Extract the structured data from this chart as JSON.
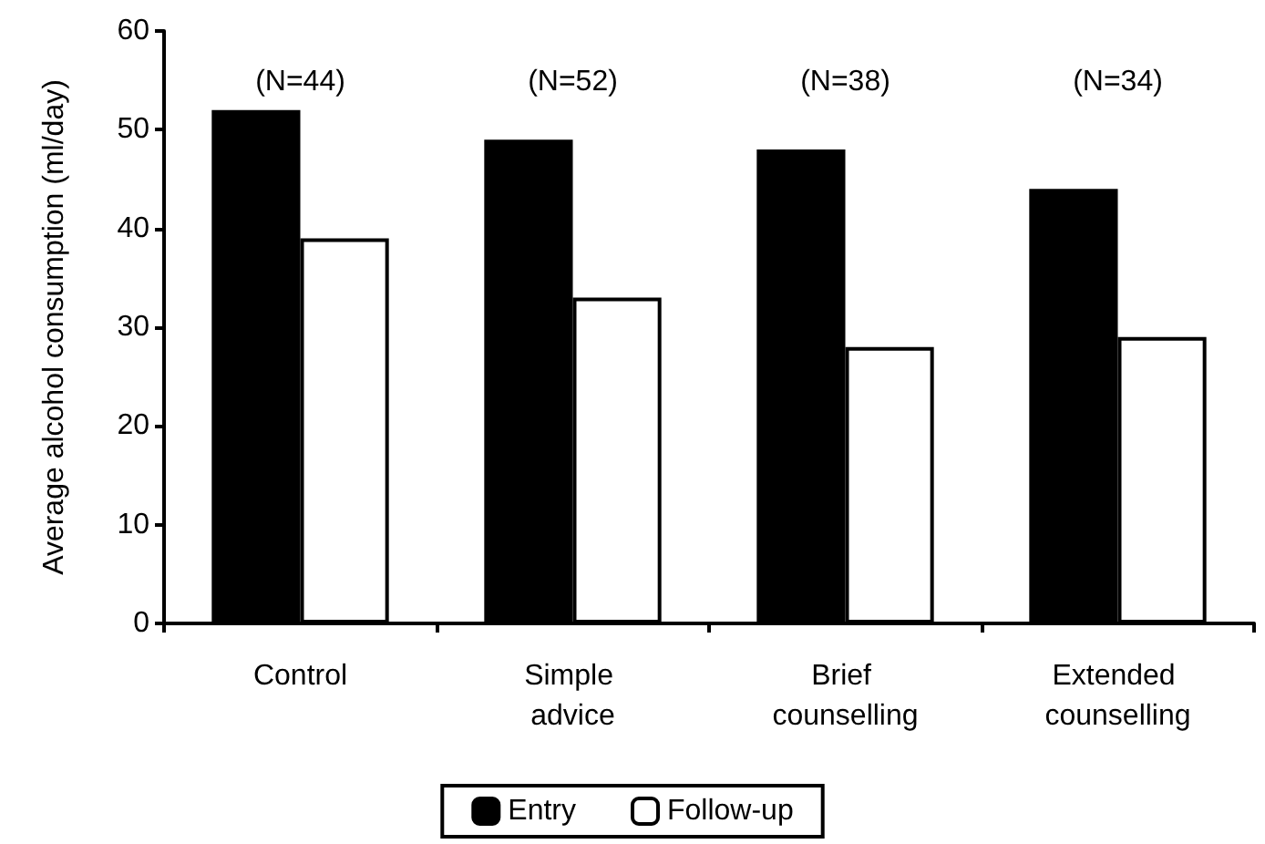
{
  "chart_data": {
    "type": "bar",
    "ylabel": "Average alcohol consumption (ml/day)",
    "categories": [
      "Control",
      "Simple advice",
      "Brief counselling",
      "Extended counselling"
    ],
    "series": [
      {
        "name": "Entry",
        "color": "#000000",
        "values": [
          52,
          49,
          48,
          44
        ]
      },
      {
        "name": "Follow-up",
        "color": "#ffffff",
        "values": [
          39,
          33,
          28,
          29
        ]
      }
    ],
    "annotations": [
      "(N=44)",
      "(N=52)",
      "(N=38)",
      "(N=34)"
    ],
    "ylim": [
      0,
      60
    ],
    "yticks": [
      0,
      10,
      20,
      30,
      40,
      50,
      60
    ],
    "grid": false,
    "legend": "bottom"
  }
}
